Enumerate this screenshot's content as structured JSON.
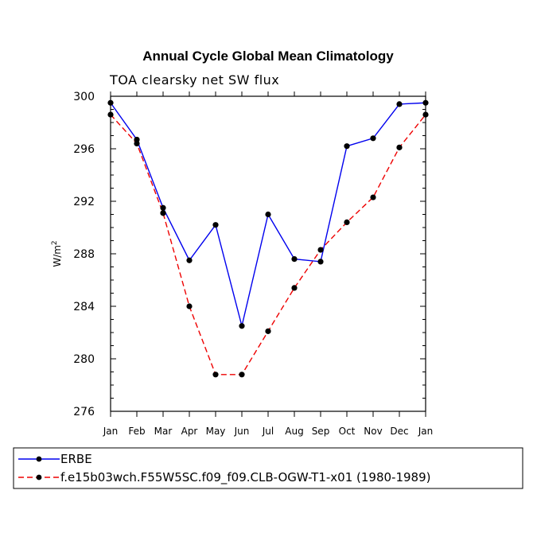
{
  "chart_data": {
    "type": "line",
    "title": "Annual Cycle Global Mean Climatology",
    "subtitle": "TOA clearsky net SW flux",
    "xlabel": "",
    "ylabel": "W/m",
    "ylabel_superscript": "2",
    "categories": [
      "Jan",
      "Feb",
      "Mar",
      "Apr",
      "May",
      "Jun",
      "Jul",
      "Aug",
      "Sep",
      "Oct",
      "Nov",
      "Dec",
      "Jan"
    ],
    "ylim": [
      276,
      300
    ],
    "yticks": [
      276,
      280,
      284,
      288,
      292,
      296,
      300
    ],
    "ytick_labels": [
      "276",
      "280",
      "284",
      "288",
      "292",
      "296",
      "300"
    ],
    "series": [
      {
        "name": "ERBE",
        "color": "#0000ee",
        "dash": "solid",
        "values": [
          299.5,
          296.7,
          291.5,
          287.5,
          290.2,
          282.5,
          291.0,
          287.6,
          287.4,
          296.2,
          296.8,
          299.4,
          299.5
        ]
      },
      {
        "name": "f.e15b03wch.F55W5SC.f09_f09.CLB-OGW-T1-x01 (1980-1989)",
        "color": "#ee0000",
        "dash": "dashed",
        "values": [
          298.6,
          296.4,
          291.1,
          284.0,
          278.8,
          278.8,
          282.1,
          285.4,
          288.3,
          290.4,
          292.3,
          296.1,
          298.6
        ]
      }
    ],
    "grid": false,
    "legend_position": "bottom"
  }
}
